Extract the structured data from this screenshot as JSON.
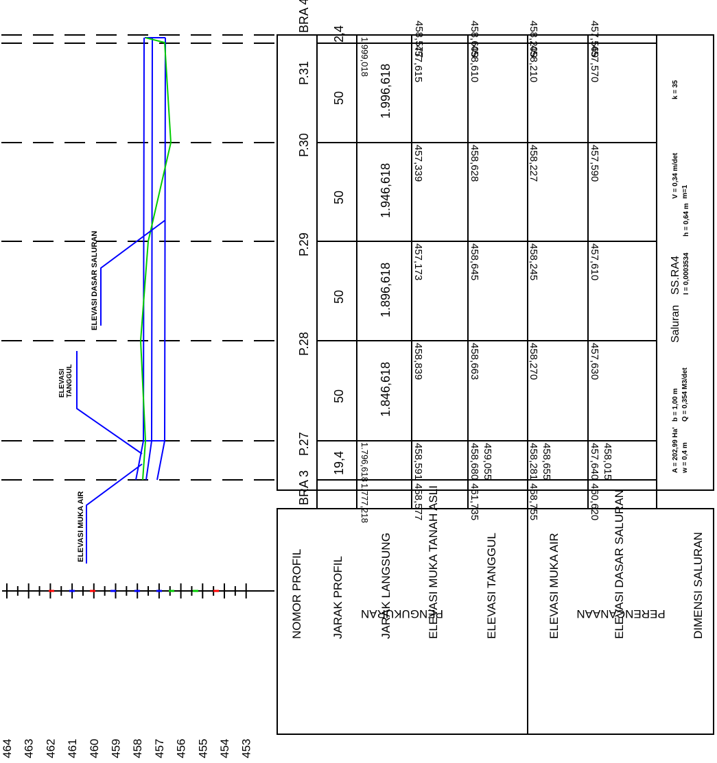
{
  "sections": {
    "measurement": "PENGUKURAN",
    "planning": "PERENCANAAN"
  },
  "row_labels": {
    "nomor_profil": "NOMOR PROFIL",
    "jarak_profil": "JARAK PROFIL",
    "jarak_langsung": "JARAK LANGSUNG",
    "elevasi_muka_tanah_asli": "ELEVASI MUKA TANAH ASLI",
    "elevasi_tanggul": "ELEVASI TANGGUL",
    "elevasi_muka_air": "ELEVASI MUKA AIR",
    "elevasi_dasar_saluran": "ELEVASI DASAR SALURAN",
    "dimensi_saluran": "DIMENSI SALURAN"
  },
  "profiles": [
    {
      "nomor": "BRA 3",
      "jarak_langsung": "1.777,218",
      "tanah_asli": "458,577",
      "tanggul": "461,735",
      "muka_air": "458,755",
      "dasar": "460,620"
    },
    {
      "nomor": "",
      "jarak_profil": "19,4",
      "jarak_langsung": "1.796,618",
      "tanah_asli": "458,591",
      "tanggul": "458,680",
      "tanggul_2": "459,055",
      "muka_air": "458,281",
      "muka_air_2": "458,655",
      "dasar": "457,640",
      "dasar_2": "458,015"
    },
    {
      "nomor": "P.27",
      "jarak_profil": "50",
      "jarak_langsung": "1.846,618",
      "tanah_asli": "458,839",
      "tanggul": "458,663",
      "muka_air": "458,270",
      "dasar": "457,630"
    },
    {
      "nomor": "P.28",
      "jarak_profil": "50",
      "jarak_langsung": "1.896,618",
      "tanah_asli": "457,173",
      "tanggul": "458,645",
      "muka_air": "458,245",
      "dasar": "457,610"
    },
    {
      "nomor": "P.29",
      "jarak_profil": "50",
      "jarak_langsung": "1.946,618",
      "tanah_asli": "457,339",
      "tanggul": "458,628",
      "muka_air": "458,227",
      "dasar": "457,590"
    },
    {
      "nomor": "P.30",
      "jarak_profil": "50",
      "jarak_langsung": "1.996,618",
      "tanah_asli": "457,615",
      "tanggul": "458,610",
      "muka_air": "458,210",
      "dasar": "457,570"
    },
    {
      "nomor": "P.31",
      "jarak_profil": "2,4",
      "jarak_langsung": "1.999,018",
      "tanah_asli": "458,577",
      "tanggul": "458,609",
      "muka_air": "458,209",
      "dasar": "457,569"
    },
    {
      "nomor": "BRA 4"
    }
  ],
  "dimensions": {
    "saluran": "Saluran",
    "name": "SS.RA4",
    "col1_top": "A = 202,99 Ha'",
    "col1_bottom": "w = 0,4 m",
    "col2_top": "b = 1,00 m",
    "col2_bottom": "Q = 0,354 M3/det",
    "col3_top": "I = 0,0003534",
    "col3_bottom": "h = 0,64 m",
    "col4_top": "V = 0,34 m/det",
    "col4_bottom": "m=1",
    "col5": "k = 35"
  },
  "legend": {
    "dasar_saluran": "ELEVASI DASAR SALURAN",
    "tanggul_1": "ELEVASI",
    "tanggul_2": "TANGGUL",
    "muka_air": "ELEVASI MUKA AIR"
  },
  "scale": {
    "ticks": [
      "464",
      "463",
      "462",
      "461",
      "460",
      "459",
      "458",
      "457",
      "456",
      "455",
      "454",
      "453"
    ]
  },
  "colors": {
    "design_line": "#0000ff",
    "ground_line": "#00cc00",
    "red": "#ff0000"
  }
}
